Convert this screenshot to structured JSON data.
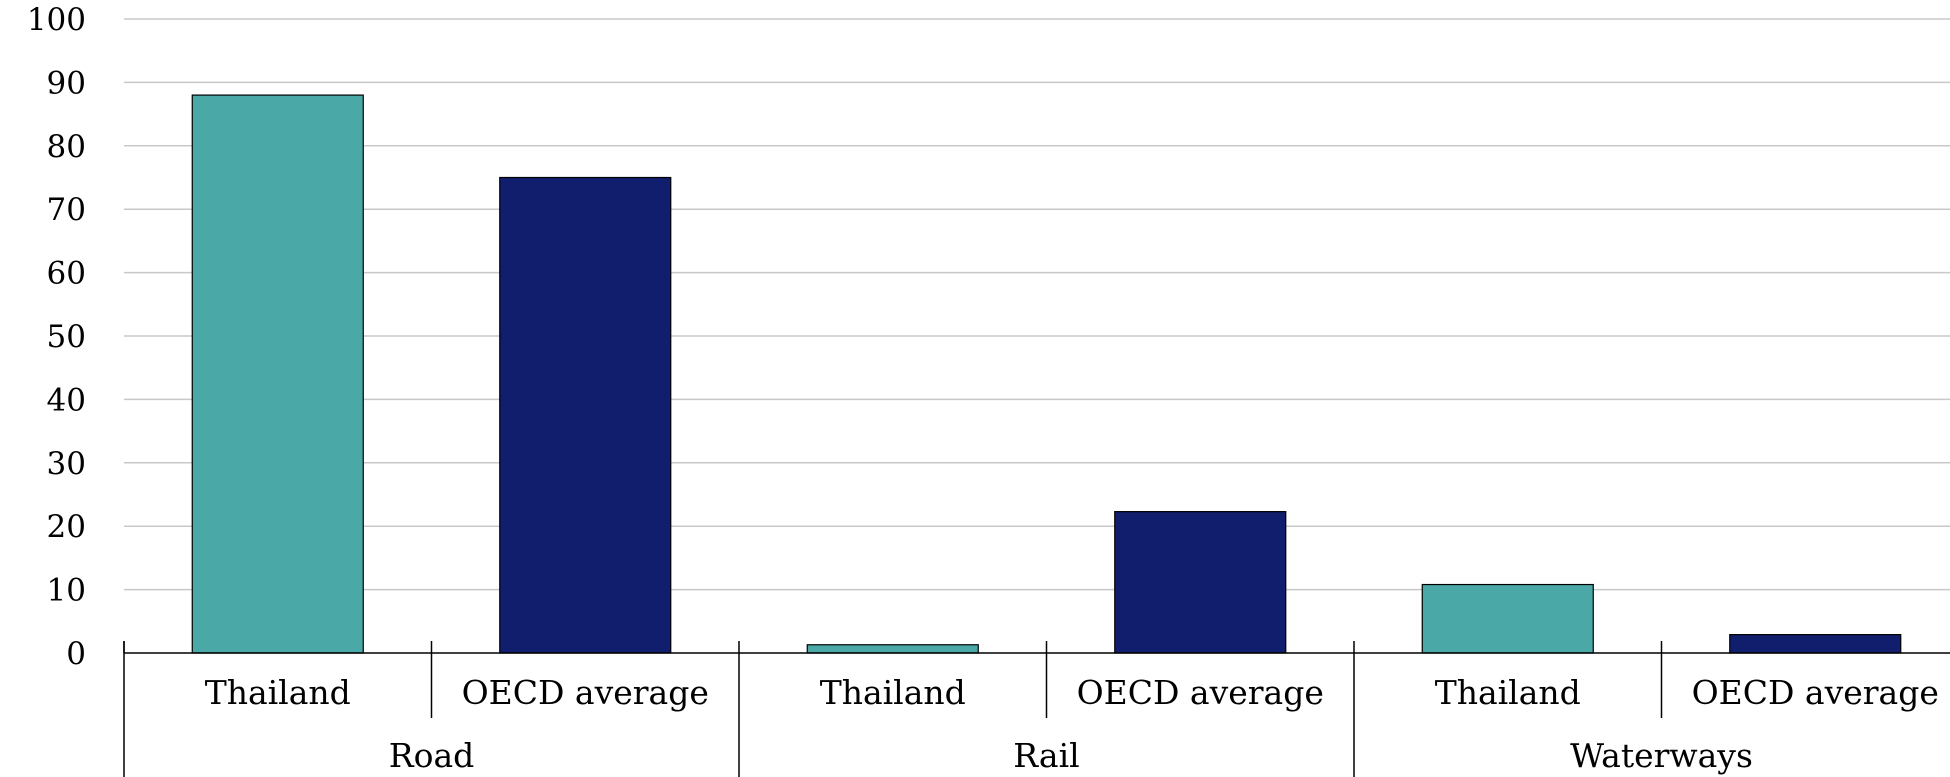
{
  "chart_data": {
    "type": "bar",
    "groups": [
      {
        "label": "Road",
        "categories": [
          "Thailand",
          "OECD average"
        ],
        "values": [
          88,
          75
        ]
      },
      {
        "label": "Rail",
        "categories": [
          "Thailand",
          "OECD average"
        ],
        "values": [
          1.3,
          22.3
        ]
      },
      {
        "label": "Waterways",
        "categories": [
          "Thailand",
          "OECD average"
        ],
        "values": [
          10.8,
          2.9
        ]
      }
    ],
    "yticks": [
      "0",
      "10",
      "20",
      "30",
      "40",
      "50",
      "60",
      "70",
      "80",
      "90",
      "100"
    ],
    "ylim": [
      0,
      100
    ],
    "xlabel": "",
    "ylabel": "",
    "grid": true,
    "legend": "none",
    "colors": {
      "Thailand": "#4aa8a6",
      "OECD average": "#111e6e",
      "gridline": "#c8c8c8",
      "axis": "#000000"
    }
  }
}
